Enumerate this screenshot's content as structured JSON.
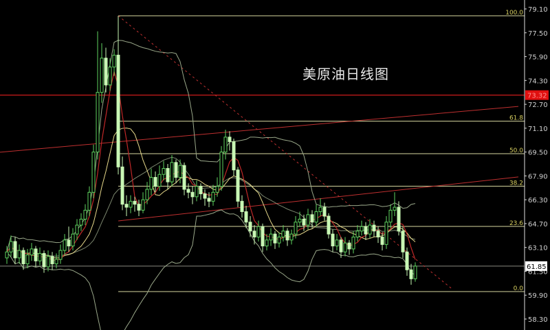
{
  "chart_data": {
    "type": "candlestick",
    "title": "美原油日线图",
    "ylim": [
      58.3,
      79.1
    ],
    "y_ticks": [
      "79.10",
      "77.50",
      "75.90",
      "74.30",
      "72.70",
      "71.10",
      "69.50",
      "67.90",
      "66.30",
      "64.70",
      "63.10",
      "61.50",
      "59.90",
      "58.30"
    ],
    "current_price": {
      "label": "61.85",
      "value": 61.85
    },
    "red_level": {
      "label": "73.32",
      "value": 73.32
    },
    "fibonacci": [
      {
        "label": "100.0",
        "value": 78.64
      },
      {
        "label": "61.8",
        "value": 71.57
      },
      {
        "label": "50.0",
        "value": 69.39
      },
      {
        "label": "38.2",
        "value": 67.21
      },
      {
        "label": "23.6",
        "value": 64.51
      },
      {
        "label": "0.0",
        "value": 60.14
      }
    ],
    "trendlines": [
      {
        "style": "solid",
        "from_index": -2,
        "from": 69.48,
        "to_index": 124,
        "to": 72.56
      },
      {
        "style": "solid",
        "from_index": 27,
        "from": 64.88,
        "to_index": 124,
        "to": 67.83
      },
      {
        "style": "dotted",
        "from_index": 27,
        "from": 78.64,
        "to_index": 108,
        "to": 60.3
      }
    ],
    "indicators": [
      "MA5",
      "MA10",
      "Bollinger(20,2)"
    ],
    "candles": [
      [
        62.4,
        63.2,
        62.0,
        62.8
      ],
      [
        62.8,
        63.9,
        62.5,
        63.5
      ],
      [
        63.5,
        63.8,
        62.0,
        62.4
      ],
      [
        62.4,
        63.3,
        62.0,
        62.9
      ],
      [
        62.9,
        63.1,
        61.6,
        62.0
      ],
      [
        62.0,
        63.0,
        61.7,
        62.6
      ],
      [
        62.6,
        63.4,
        62.2,
        63.0
      ],
      [
        63.0,
        63.2,
        61.8,
        62.2
      ],
      [
        62.2,
        63.1,
        61.9,
        62.7
      ],
      [
        62.7,
        62.9,
        61.4,
        61.8
      ],
      [
        61.8,
        62.9,
        61.5,
        62.5
      ],
      [
        62.5,
        62.8,
        61.6,
        62.0
      ],
      [
        62.0,
        62.7,
        61.7,
        62.3
      ],
      [
        62.3,
        63.3,
        62.0,
        62.9
      ],
      [
        62.9,
        64.0,
        62.6,
        63.6
      ],
      [
        63.6,
        64.5,
        62.8,
        63.2
      ],
      [
        63.2,
        64.4,
        62.9,
        64.0
      ],
      [
        64.0,
        65.0,
        63.6,
        64.6
      ],
      [
        64.6,
        65.4,
        64.2,
        65.0
      ],
      [
        65.0,
        66.0,
        64.6,
        65.6
      ],
      [
        65.6,
        67.2,
        65.2,
        66.8
      ],
      [
        66.8,
        70.0,
        66.4,
        69.5
      ],
      [
        69.5,
        77.6,
        69.0,
        73.5
      ],
      [
        73.5,
        76.8,
        72.8,
        75.8
      ],
      [
        75.8,
        76.5,
        73.5,
        74.0
      ],
      [
        74.0,
        75.8,
        73.6,
        75.2
      ],
      [
        75.2,
        76.4,
        74.6,
        76.0
      ],
      [
        76.0,
        78.64,
        68.0,
        68.5
      ],
      [
        68.5,
        69.2,
        65.6,
        66.0
      ],
      [
        66.0,
        66.6,
        65.2,
        65.8
      ],
      [
        65.8,
        66.6,
        65.4,
        66.2
      ],
      [
        66.2,
        66.5,
        65.5,
        66.0
      ],
      [
        66.0,
        66.3,
        65.2,
        65.6
      ],
      [
        65.6,
        66.8,
        65.4,
        66.3
      ],
      [
        66.3,
        67.5,
        66.0,
        67.0
      ],
      [
        67.0,
        68.4,
        66.6,
        67.8
      ],
      [
        67.8,
        68.2,
        66.8,
        67.2
      ],
      [
        67.2,
        68.6,
        66.9,
        68.0
      ],
      [
        68.0,
        68.9,
        67.6,
        68.4
      ],
      [
        68.4,
        68.7,
        67.0,
        67.5
      ],
      [
        67.5,
        69.3,
        67.2,
        68.8
      ],
      [
        68.8,
        69.0,
        67.4,
        67.8
      ],
      [
        67.8,
        69.0,
        67.4,
        68.6
      ],
      [
        68.6,
        68.8,
        66.6,
        67.0
      ],
      [
        67.0,
        67.4,
        66.4,
        66.8
      ],
      [
        66.8,
        67.2,
        66.0,
        66.5
      ],
      [
        66.5,
        67.6,
        66.2,
        67.2
      ],
      [
        67.2,
        67.4,
        66.3,
        66.7
      ],
      [
        66.7,
        67.0,
        65.9,
        66.4
      ],
      [
        66.4,
        66.8,
        65.8,
        66.2
      ],
      [
        66.2,
        67.3,
        65.9,
        66.8
      ],
      [
        66.8,
        67.8,
        66.5,
        67.2
      ],
      [
        67.2,
        69.9,
        66.9,
        69.5
      ],
      [
        69.5,
        71.0,
        69.0,
        70.5
      ],
      [
        70.5,
        70.9,
        69.6,
        70.2
      ],
      [
        70.2,
        70.4,
        67.9,
        68.3
      ],
      [
        68.3,
        68.5,
        65.8,
        66.2
      ],
      [
        66.2,
        66.6,
        65.1,
        65.5
      ],
      [
        65.5,
        65.9,
        64.4,
        64.8
      ],
      [
        64.8,
        65.2,
        63.8,
        64.2
      ],
      [
        64.2,
        64.6,
        63.3,
        63.8
      ],
      [
        63.8,
        64.9,
        63.5,
        64.5
      ],
      [
        64.5,
        64.7,
        62.8,
        63.2
      ],
      [
        63.2,
        64.0,
        62.9,
        63.6
      ],
      [
        63.6,
        64.4,
        63.2,
        64.0
      ],
      [
        64.0,
        64.2,
        63.0,
        63.4
      ],
      [
        63.4,
        64.1,
        63.1,
        63.8
      ],
      [
        63.8,
        64.6,
        63.5,
        64.2
      ],
      [
        64.2,
        64.4,
        63.2,
        63.6
      ],
      [
        63.6,
        64.3,
        63.3,
        64.0
      ],
      [
        64.0,
        65.2,
        63.7,
        64.8
      ],
      [
        64.8,
        65.5,
        64.5,
        65.0
      ],
      [
        65.0,
        65.3,
        64.2,
        64.6
      ],
      [
        64.6,
        65.7,
        64.3,
        65.3
      ],
      [
        65.3,
        65.6,
        64.4,
        64.8
      ],
      [
        64.8,
        66.0,
        64.5,
        65.5
      ],
      [
        65.5,
        66.4,
        65.2,
        65.8
      ],
      [
        65.8,
        66.1,
        64.9,
        65.2
      ],
      [
        65.2,
        65.4,
        63.7,
        64.0
      ],
      [
        64.0,
        64.3,
        62.8,
        63.2
      ],
      [
        63.2,
        64.0,
        62.9,
        63.6
      ],
      [
        63.6,
        63.8,
        62.4,
        62.8
      ],
      [
        62.8,
        63.8,
        62.5,
        63.4
      ],
      [
        63.4,
        63.6,
        62.6,
        63.0
      ],
      [
        63.0,
        64.2,
        62.7,
        63.8
      ],
      [
        63.8,
        64.6,
        63.5,
        64.2
      ],
      [
        64.2,
        64.9,
        63.9,
        64.5
      ],
      [
        64.5,
        64.8,
        63.6,
        64.0
      ],
      [
        64.0,
        65.0,
        63.7,
        64.6
      ],
      [
        64.6,
        64.9,
        63.8,
        64.2
      ],
      [
        64.2,
        64.5,
        63.4,
        63.8
      ],
      [
        63.8,
        64.1,
        62.9,
        63.3
      ],
      [
        63.3,
        65.2,
        63.0,
        64.8
      ],
      [
        64.8,
        66.0,
        64.4,
        65.6
      ],
      [
        65.6,
        66.8,
        65.2,
        65.8
      ],
      [
        65.8,
        66.2,
        63.9,
        64.2
      ],
      [
        64.2,
        64.5,
        62.4,
        62.8
      ],
      [
        62.8,
        63.1,
        61.2,
        61.6
      ],
      [
        61.6,
        62.0,
        60.6,
        61.0
      ],
      [
        61.0,
        62.1,
        60.8,
        61.85
      ]
    ],
    "colors": {
      "background": "#000000",
      "bull": "#5fd35f",
      "bear": "#c8f7b4",
      "ma5": "#c02828",
      "ma10": "#e6d88a",
      "bollinger": "#9aa88a",
      "fib": "#d8d8a0",
      "red_level": "#b01818",
      "trend": "#c03030",
      "axis": "#e0e0e0",
      "tick_text": "#d0d0d0",
      "fib_text": "#d8d060"
    }
  }
}
